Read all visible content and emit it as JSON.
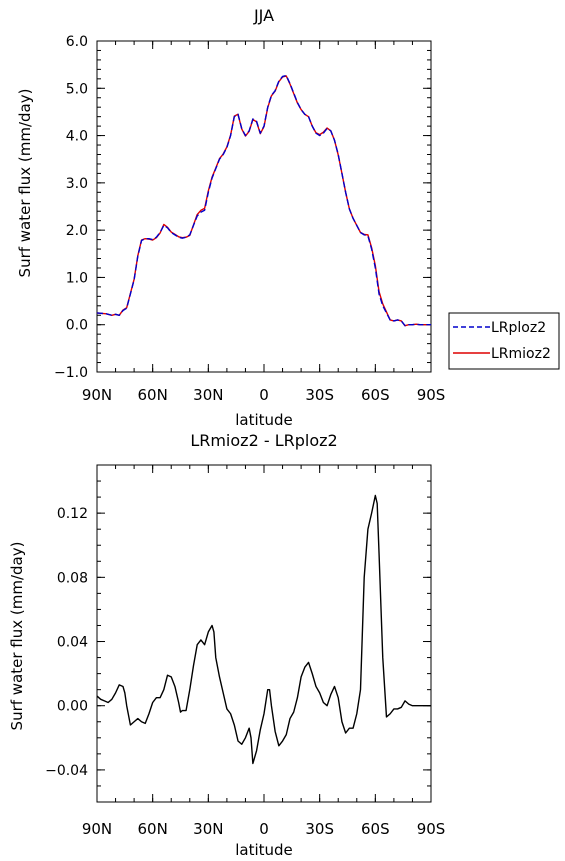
{
  "chart_data": [
    {
      "type": "line",
      "title": "JJA",
      "xlabel": "latitude",
      "ylabel": "Surf water flux (mm/day)",
      "xlim": [
        -90,
        90
      ],
      "ylim": [
        -1.0,
        6.0
      ],
      "x_tick_values": [
        -90,
        -60,
        -30,
        0,
        30,
        60,
        90
      ],
      "x_tick_labels": [
        "90N",
        "60N",
        "30N",
        "0",
        "30S",
        "60S",
        "90S"
      ],
      "y_tick_values": [
        -1.0,
        0.0,
        1.0,
        2.0,
        3.0,
        4.0,
        5.0,
        6.0
      ],
      "y_tick_labels": [
        "-1.0",
        "0.0",
        "1.0",
        "2.0",
        "3.0",
        "4.0",
        "5.0",
        "6.0"
      ],
      "legend_position": "right",
      "x": [
        -90,
        -85,
        -82,
        -80,
        -78,
        -76,
        -74,
        -72,
        -70,
        -68,
        -66,
        -64,
        -62,
        -60,
        -58,
        -56,
        -54,
        -52,
        -50,
        -48,
        -46,
        -44,
        -42,
        -40,
        -38,
        -36,
        -34,
        -32,
        -30,
        -28,
        -26,
        -24,
        -22,
        -20,
        -18,
        -16,
        -14,
        -12,
        -10,
        -8,
        -6,
        -4,
        -2,
        0,
        2,
        4,
        6,
        8,
        10,
        12,
        14,
        16,
        18,
        20,
        22,
        24,
        26,
        28,
        30,
        32,
        34,
        36,
        38,
        40,
        42,
        44,
        46,
        48,
        50,
        52,
        54,
        56,
        58,
        60,
        62,
        64,
        66,
        68,
        70,
        72,
        74,
        76,
        78,
        80,
        82,
        84,
        86,
        88,
        90
      ],
      "series": [
        {
          "name": "LRploz2",
          "color": "#0000cc",
          "dash": true,
          "values": [
            0.25,
            0.23,
            0.2,
            0.22,
            0.2,
            0.3,
            0.35,
            0.65,
            0.95,
            1.45,
            1.78,
            1.82,
            1.82,
            1.8,
            1.85,
            1.95,
            2.1,
            2.05,
            1.95,
            1.9,
            1.85,
            1.83,
            1.85,
            1.9,
            2.1,
            2.3,
            2.38,
            2.42,
            2.8,
            3.1,
            3.3,
            3.5,
            3.6,
            3.75,
            4.0,
            4.4,
            4.45,
            4.15,
            4.0,
            4.1,
            4.35,
            4.3,
            4.05,
            4.2,
            4.6,
            4.85,
            4.95,
            5.15,
            5.25,
            5.27,
            5.1,
            4.9,
            4.7,
            4.55,
            4.45,
            4.4,
            4.2,
            4.05,
            4.0,
            4.05,
            4.15,
            4.1,
            3.9,
            3.6,
            3.2,
            2.8,
            2.45,
            2.25,
            2.1,
            1.95,
            1.9,
            1.88,
            1.6,
            1.2,
            0.65,
            0.4,
            0.25,
            0.1,
            0.08,
            0.1,
            0.08,
            -0.02,
            0.0,
            0.0,
            0.01,
            0.0,
            0.0,
            0.0,
            0.0
          ]
        },
        {
          "name": "LRmioz2",
          "color": "#dd0000",
          "dash": false,
          "values": [
            0.25,
            0.23,
            0.2,
            0.22,
            0.2,
            0.31,
            0.36,
            0.66,
            0.96,
            1.46,
            1.79,
            1.82,
            1.81,
            1.79,
            1.84,
            1.94,
            2.12,
            2.06,
            1.96,
            1.91,
            1.86,
            1.84,
            1.85,
            1.89,
            2.11,
            2.33,
            2.42,
            2.46,
            2.83,
            3.12,
            3.31,
            3.51,
            3.61,
            3.76,
            4.01,
            4.41,
            4.45,
            4.14,
            3.99,
            4.09,
            4.34,
            4.29,
            4.04,
            4.19,
            4.59,
            4.84,
            4.94,
            5.14,
            5.24,
            5.26,
            5.09,
            4.89,
            4.69,
            4.55,
            4.45,
            4.4,
            4.2,
            4.06,
            4.02,
            4.07,
            4.16,
            4.1,
            3.9,
            3.59,
            3.2,
            2.8,
            2.45,
            2.25,
            2.1,
            1.95,
            1.91,
            1.9,
            1.63,
            1.25,
            0.7,
            0.44,
            0.27,
            0.1,
            0.08,
            0.1,
            0.08,
            -0.02,
            0.0,
            0.0,
            0.01,
            0.0,
            0.0,
            0.0,
            0.0
          ]
        }
      ]
    },
    {
      "type": "line",
      "title": "LRmioz2 - LRploz2",
      "xlabel": "latitude",
      "ylabel": "Surf water flux (mm/day)",
      "xlim": [
        -90,
        90
      ],
      "ylim": [
        -0.06,
        0.15
      ],
      "x_tick_values": [
        -90,
        -60,
        -30,
        0,
        30,
        60,
        90
      ],
      "x_tick_labels": [
        "90N",
        "60N",
        "30N",
        "0",
        "30S",
        "60S",
        "90S"
      ],
      "y_tick_values": [
        -0.04,
        0.0,
        0.04,
        0.08,
        0.12
      ],
      "y_tick_labels": [
        "-0.04",
        "0.00",
        "0.04",
        "0.08",
        "0.12"
      ],
      "x": [
        -90,
        -88,
        -86,
        -84,
        -82,
        -80,
        -78,
        -76,
        -75,
        -74,
        -72,
        -70,
        -68,
        -66,
        -64,
        -62,
        -60,
        -58,
        -56,
        -54,
        -52,
        -50,
        -48,
        -46,
        -45,
        -44,
        -42,
        -40,
        -38,
        -36,
        -34,
        -32,
        -30,
        -28,
        -27,
        -26,
        -24,
        -22,
        -20,
        -18,
        -16,
        -14,
        -12,
        -10,
        -8,
        -7,
        -6,
        -4,
        -2,
        0,
        2,
        3,
        4,
        6,
        8,
        10,
        12,
        14,
        16,
        18,
        20,
        22,
        24,
        26,
        28,
        30,
        32,
        34,
        36,
        38,
        40,
        42,
        44,
        46,
        48,
        50,
        52,
        54,
        56,
        58,
        60,
        61,
        62,
        64,
        66,
        68,
        70,
        72,
        74,
        76,
        78,
        80,
        82,
        84,
        86,
        88,
        90
      ],
      "series": [
        {
          "name": "",
          "color": "#000000",
          "dash": false,
          "values": [
            0.006,
            0.004,
            0.003,
            0.002,
            0.004,
            0.008,
            0.013,
            0.012,
            0.008,
            0.0,
            -0.012,
            -0.01,
            -0.008,
            -0.01,
            -0.011,
            -0.005,
            0.002,
            0.005,
            0.005,
            0.01,
            0.019,
            0.018,
            0.012,
            0.002,
            -0.004,
            -0.003,
            -0.003,
            0.01,
            0.025,
            0.038,
            0.041,
            0.038,
            0.046,
            0.05,
            0.046,
            0.03,
            0.018,
            0.008,
            -0.002,
            -0.005,
            -0.012,
            -0.022,
            -0.024,
            -0.02,
            -0.014,
            -0.02,
            -0.036,
            -0.028,
            -0.015,
            -0.005,
            0.01,
            0.01,
            0.0,
            -0.016,
            -0.025,
            -0.022,
            -0.018,
            -0.008,
            -0.004,
            0.005,
            0.018,
            0.024,
            0.027,
            0.02,
            0.012,
            0.008,
            0.002,
            0.0,
            0.007,
            0.012,
            0.005,
            -0.01,
            -0.017,
            -0.014,
            -0.014,
            -0.005,
            0.01,
            0.08,
            0.11,
            0.12,
            0.131,
            0.126,
            0.095,
            0.03,
            -0.007,
            -0.005,
            -0.002,
            -0.002,
            -0.001,
            0.003,
            0.001,
            0.0,
            0.0,
            0.0,
            0.0,
            0.0,
            0.0
          ]
        }
      ]
    }
  ]
}
